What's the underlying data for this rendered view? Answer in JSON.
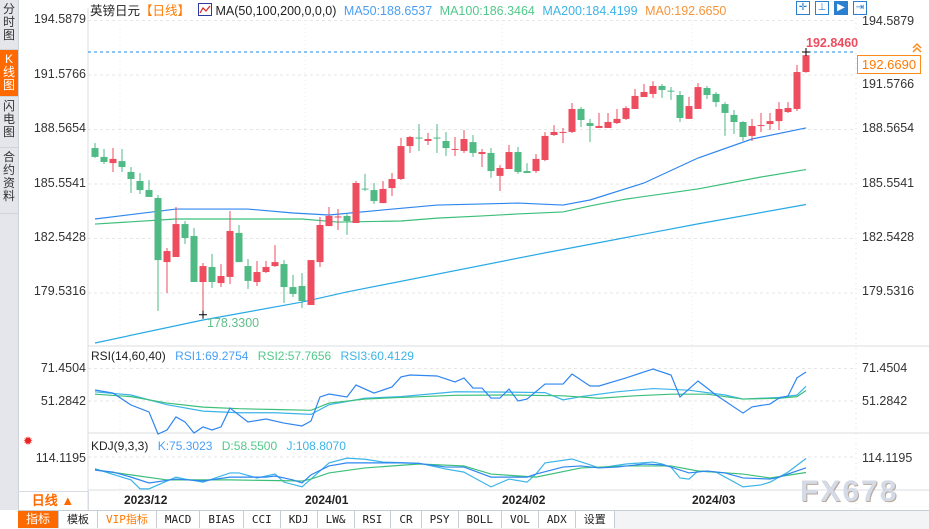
{
  "sidebar": {
    "tabs": [
      {
        "label": "分时图",
        "active": false
      },
      {
        "label": "K线图",
        "active": true
      },
      {
        "label": "闪电图",
        "active": false
      },
      {
        "label": "合约资料",
        "active": false
      }
    ]
  },
  "header": {
    "symbol": "英镑日元",
    "period_tag": "【日线】",
    "ma_params": "MA(50,100,200,0,0,0)",
    "ma50": "MA50:188.6537",
    "ma100": "MA100:186.3464",
    "ma200": "MA200:184.4199",
    "ma0": "MA0:192.6650"
  },
  "toolbar_icons": [
    "crosshair-icon",
    "zoom-range-icon",
    "play-chart-icon",
    "exit-right-icon"
  ],
  "price_axis": {
    "ticks": [
      "194.5879",
      "191.5766",
      "188.5654",
      "185.5541",
      "182.5428",
      "179.5316"
    ]
  },
  "annotations": {
    "high_label": "192.8460",
    "low_label": "178.3300",
    "last_price": "192.6690"
  },
  "colors": {
    "up": "#ee4d5f",
    "down": "#4fba84",
    "ma50": "#2f86f0",
    "ma100": "#3cbf7a",
    "ma200": "#27a9e6",
    "accent": "#ff6a00"
  },
  "candles": [
    [
      187.54,
      187.82,
      187.0,
      187.05
    ],
    [
      187.05,
      187.49,
      186.66,
      186.77
    ],
    [
      186.71,
      187.54,
      186.22,
      186.94
    ],
    [
      186.82,
      187.49,
      186.22,
      186.49
    ],
    [
      186.22,
      186.49,
      185.06,
      185.83
    ],
    [
      185.72,
      186.16,
      185.0,
      185.22
    ],
    [
      185.22,
      185.77,
      184.84,
      184.84
    ],
    [
      184.78,
      184.95,
      178.54,
      181.35
    ],
    [
      181.24,
      182.02,
      179.53,
      181.85
    ],
    [
      181.52,
      184.28,
      181.52,
      183.34
    ],
    [
      183.34,
      183.51,
      182.24,
      182.57
    ],
    [
      182.68,
      183.12,
      180.14,
      180.14
    ],
    [
      180.14,
      181.19,
      178.33,
      181.02
    ],
    [
      180.97,
      181.69,
      179.81,
      180.14
    ],
    [
      180.08,
      181.13,
      179.86,
      180.47
    ],
    [
      180.42,
      184.06,
      180.03,
      182.96
    ],
    [
      182.85,
      183.29,
      181.24,
      181.24
    ],
    [
      181.02,
      181.41,
      179.75,
      180.2
    ],
    [
      180.14,
      181.3,
      179.92,
      180.69
    ],
    [
      180.69,
      181.3,
      180.64,
      180.97
    ],
    [
      181.02,
      182.18,
      180.97,
      181.24
    ],
    [
      181.13,
      181.35,
      178.98,
      179.86
    ],
    [
      179.86,
      180.53,
      179.31,
      179.48
    ],
    [
      179.92,
      180.64,
      178.7,
      179.09
    ],
    [
      178.87,
      181.35,
      178.87,
      181.35
    ],
    [
      181.24,
      183.73,
      180.97,
      183.29
    ],
    [
      183.23,
      184.28,
      183.23,
      183.79
    ],
    [
      183.73,
      184.17,
      183.01,
      183.76
    ],
    [
      183.79,
      183.95,
      182.74,
      183.51
    ],
    [
      183.4,
      185.72,
      183.4,
      185.61
    ],
    [
      185.3,
      186.11,
      185.17,
      185.28
    ],
    [
      185.22,
      185.61,
      184.45,
      184.61
    ],
    [
      184.5,
      185.72,
      184.5,
      185.28
    ],
    [
      185.33,
      186.16,
      184.89,
      185.83
    ],
    [
      185.83,
      188.1,
      185.77,
      187.65
    ],
    [
      187.65,
      188.21,
      187.27,
      188.15
    ],
    [
      188.12,
      188.87,
      187.38,
      188.1
    ],
    [
      187.93,
      188.37,
      187.71,
      188.04
    ],
    [
      188.12,
      188.87,
      187.27,
      188.1
    ],
    [
      187.93,
      188.43,
      187.1,
      187.54
    ],
    [
      187.47,
      188.15,
      187.1,
      187.49
    ],
    [
      187.38,
      188.54,
      187.27,
      188.04
    ],
    [
      187.87,
      188.26,
      187.05,
      187.27
    ],
    [
      187.21,
      187.49,
      186.49,
      187.32
    ],
    [
      187.27,
      187.54,
      185.89,
      186.27
    ],
    [
      186.0,
      186.6,
      185.17,
      186.44
    ],
    [
      186.38,
      187.71,
      186.38,
      187.32
    ],
    [
      187.32,
      187.6,
      186.11,
      186.22
    ],
    [
      186.27,
      186.71,
      186.16,
      186.16
    ],
    [
      186.27,
      187.21,
      186.16,
      186.94
    ],
    [
      186.88,
      188.43,
      186.82,
      188.21
    ],
    [
      188.26,
      188.81,
      188.21,
      188.43
    ],
    [
      188.41,
      188.65,
      187.82,
      188.43
    ],
    [
      188.43,
      190.03,
      188.37,
      189.7
    ],
    [
      189.7,
      189.81,
      188.7,
      189.09
    ],
    [
      188.92,
      189.15,
      187.87,
      188.76
    ],
    [
      188.65,
      189.48,
      188.65,
      188.76
    ],
    [
      188.65,
      189.48,
      188.65,
      188.98
    ],
    [
      188.92,
      189.7,
      188.87,
      189.15
    ],
    [
      189.15,
      189.86,
      189.09,
      189.75
    ],
    [
      189.7,
      190.8,
      189.7,
      190.42
    ],
    [
      190.36,
      191.08,
      190.36,
      190.64
    ],
    [
      190.53,
      191.24,
      190.31,
      190.97
    ],
    [
      190.97,
      191.08,
      190.31,
      190.75
    ],
    [
      190.71,
      190.91,
      190.2,
      190.69
    ],
    [
      190.47,
      190.69,
      188.98,
      189.2
    ],
    [
      189.15,
      190.36,
      189.15,
      189.86
    ],
    [
      189.7,
      191.13,
      189.7,
      190.91
    ],
    [
      190.86,
      190.97,
      190.25,
      190.47
    ],
    [
      190.53,
      190.64,
      189.81,
      190.08
    ],
    [
      189.97,
      190.08,
      188.21,
      189.48
    ],
    [
      189.37,
      189.64,
      188.32,
      188.98
    ],
    [
      188.98,
      189.03,
      187.93,
      188.15
    ],
    [
      188.21,
      189.15,
      187.93,
      188.76
    ],
    [
      188.79,
      189.48,
      188.43,
      188.81
    ],
    [
      188.87,
      189.48,
      188.54,
      189.03
    ],
    [
      189.03,
      190.08,
      188.54,
      189.7
    ],
    [
      189.53,
      190.08,
      189.48,
      189.75
    ],
    [
      189.7,
      192.13,
      189.59,
      191.74
    ],
    [
      191.74,
      192.846,
      191.7,
      192.669
    ]
  ],
  "ma_lines": {
    "ma50": [
      [
        0,
        183.62
      ],
      [
        9,
        184.17
      ],
      [
        17,
        184.17
      ],
      [
        22,
        183.95
      ],
      [
        26,
        183.84
      ],
      [
        32,
        184.12
      ],
      [
        38,
        184.39
      ],
      [
        47,
        184.5
      ],
      [
        52,
        184.39
      ],
      [
        55,
        184.67
      ],
      [
        61,
        185.61
      ],
      [
        67,
        186.99
      ],
      [
        73,
        188.04
      ],
      [
        79,
        188.65
      ]
    ],
    "ma100": [
      [
        0,
        183.34
      ],
      [
        9,
        183.62
      ],
      [
        23,
        183.62
      ],
      [
        27,
        183.45
      ],
      [
        34,
        183.51
      ],
      [
        38,
        183.67
      ],
      [
        43,
        183.79
      ],
      [
        47,
        183.9
      ],
      [
        52,
        184.01
      ],
      [
        55,
        184.34
      ],
      [
        59,
        184.72
      ],
      [
        67,
        185.28
      ],
      [
        74,
        185.94
      ],
      [
        79,
        186.35
      ]
    ],
    "ma200": [
      [
        0,
        176.77
      ],
      [
        12,
        178.04
      ],
      [
        23,
        179.03
      ],
      [
        28,
        179.59
      ],
      [
        50,
        181.75
      ],
      [
        67,
        183.35
      ],
      [
        79,
        184.42
      ]
    ]
  },
  "rsi": {
    "title": "RSI(14,60,40)",
    "rsi1_label": "RSI1:69.2754",
    "rsi2_label": "RSI2:57.7656",
    "rsi3_label": "RSI3:60.4129",
    "ticks": [
      "71.4504",
      "51.2842"
    ],
    "rsi1": [
      [
        0,
        58.1
      ],
      [
        2,
        56.2
      ],
      [
        4,
        48.8
      ],
      [
        6,
        44.5
      ],
      [
        7,
        30.8
      ],
      [
        8,
        33.3
      ],
      [
        9,
        41.4
      ],
      [
        10,
        38.3
      ],
      [
        11,
        31.4
      ],
      [
        12,
        35.2
      ],
      [
        13,
        33.3
      ],
      [
        14,
        35.2
      ],
      [
        15,
        46.9
      ],
      [
        17,
        38.3
      ],
      [
        19,
        40.1
      ],
      [
        21,
        37.6
      ],
      [
        23,
        35.8
      ],
      [
        24,
        38.9
      ],
      [
        25,
        53.8
      ],
      [
        26,
        55.6
      ],
      [
        28,
        53.8
      ],
      [
        29,
        61.2
      ],
      [
        31,
        56.2
      ],
      [
        33,
        60.0
      ],
      [
        34,
        66.2
      ],
      [
        35,
        67.4
      ],
      [
        38,
        66.8
      ],
      [
        40,
        63.1
      ],
      [
        41,
        65.6
      ],
      [
        42,
        59.3
      ],
      [
        43,
        59.3
      ],
      [
        44,
        53.1
      ],
      [
        45,
        53.1
      ],
      [
        46,
        58.7
      ],
      [
        47,
        51.3
      ],
      [
        48,
        52.5
      ],
      [
        50,
        61.8
      ],
      [
        52,
        61.8
      ],
      [
        53,
        68.0
      ],
      [
        55,
        60.6
      ],
      [
        56,
        60.6
      ],
      [
        59,
        65.6
      ],
      [
        61,
        69.3
      ],
      [
        62,
        71.1
      ],
      [
        64,
        67.4
      ],
      [
        65,
        53.8
      ],
      [
        67,
        63.7
      ],
      [
        69,
        55.0
      ],
      [
        72,
        43.8
      ],
      [
        73,
        47.6
      ],
      [
        75,
        49.4
      ],
      [
        76,
        53.1
      ],
      [
        77,
        54.4
      ],
      [
        78,
        65.6
      ],
      [
        79,
        69.28
      ]
    ],
    "rsi2": [
      [
        0,
        55.5
      ],
      [
        4,
        54
      ],
      [
        8,
        50
      ],
      [
        12,
        47.5
      ],
      [
        16,
        46.5
      ],
      [
        20,
        46
      ],
      [
        24,
        45.5
      ],
      [
        26,
        50
      ],
      [
        30,
        52.5
      ],
      [
        34,
        53.5
      ],
      [
        40,
        54.8
      ],
      [
        46,
        55
      ],
      [
        52,
        54.5
      ],
      [
        56,
        53
      ],
      [
        60,
        54.5
      ],
      [
        64,
        55.5
      ],
      [
        68,
        55.5
      ],
      [
        72,
        52.5
      ],
      [
        76,
        53
      ],
      [
        78,
        54
      ],
      [
        79,
        57.77
      ]
    ],
    "rsi3": [
      [
        0,
        57
      ],
      [
        4,
        55
      ],
      [
        8,
        49
      ],
      [
        12,
        45
      ],
      [
        16,
        44
      ],
      [
        20,
        44
      ],
      [
        24,
        43
      ],
      [
        26,
        49
      ],
      [
        30,
        53
      ],
      [
        34,
        54
      ],
      [
        40,
        57
      ],
      [
        46,
        56.8
      ],
      [
        50,
        56.5
      ],
      [
        52,
        52
      ],
      [
        54,
        54
      ],
      [
        58,
        57
      ],
      [
        62,
        59
      ],
      [
        66,
        58
      ],
      [
        70,
        55
      ],
      [
        72,
        52.5
      ],
      [
        76,
        53.5
      ],
      [
        78,
        55
      ],
      [
        79,
        60.41
      ]
    ]
  },
  "kdj": {
    "title": "KDJ(9,3,3)",
    "k_label": "K:75.3023",
    "d_label": "D:58.5500",
    "j_label": "J:108.8070",
    "ticks": [
      "114.1195"
    ],
    "k": [
      [
        0,
        67
      ],
      [
        2,
        60
      ],
      [
        4,
        42
      ],
      [
        6,
        21
      ],
      [
        9,
        35
      ],
      [
        12,
        28
      ],
      [
        15,
        42
      ],
      [
        19,
        42
      ],
      [
        20,
        46
      ],
      [
        22,
        32
      ],
      [
        23,
        21
      ],
      [
        24,
        50
      ],
      [
        26,
        82
      ],
      [
        28,
        93
      ],
      [
        34,
        93
      ],
      [
        36,
        91
      ],
      [
        39,
        78
      ],
      [
        41,
        78
      ],
      [
        44,
        42
      ],
      [
        48,
        42
      ],
      [
        49,
        53
      ],
      [
        52,
        78
      ],
      [
        54,
        82
      ],
      [
        56,
        75
      ],
      [
        58,
        78
      ],
      [
        61,
        89
      ],
      [
        63,
        86
      ],
      [
        64,
        78
      ],
      [
        66,
        57
      ],
      [
        68,
        64
      ],
      [
        70,
        57
      ],
      [
        72,
        39
      ],
      [
        75,
        35
      ],
      [
        76,
        42
      ],
      [
        79,
        75.3
      ]
    ],
    "d": [
      [
        0,
        68
      ],
      [
        4,
        50
      ],
      [
        8,
        32
      ],
      [
        15,
        32
      ],
      [
        23,
        28
      ],
      [
        24,
        35
      ],
      [
        26,
        57
      ],
      [
        30,
        75
      ],
      [
        36,
        89
      ],
      [
        41,
        82
      ],
      [
        44,
        53
      ],
      [
        49,
        42
      ],
      [
        54,
        75
      ],
      [
        59,
        82
      ],
      [
        64,
        82
      ],
      [
        67,
        64
      ],
      [
        72,
        53
      ],
      [
        75,
        39
      ],
      [
        79,
        58.55
      ]
    ],
    "j": [
      [
        0,
        72
      ],
      [
        4,
        32
      ],
      [
        5,
        0
      ],
      [
        6,
        0
      ],
      [
        9,
        42
      ],
      [
        10,
        35
      ],
      [
        12,
        24
      ],
      [
        15,
        57
      ],
      [
        16,
        57
      ],
      [
        18,
        39
      ],
      [
        20,
        53
      ],
      [
        21,
        24
      ],
      [
        23,
        7
      ],
      [
        24,
        35
      ],
      [
        26,
        93
      ],
      [
        28,
        110
      ],
      [
        30,
        106
      ],
      [
        32,
        96
      ],
      [
        36,
        92
      ],
      [
        39,
        71
      ],
      [
        41,
        60
      ],
      [
        42,
        42
      ],
      [
        44,
        7
      ],
      [
        46,
        35
      ],
      [
        48,
        24
      ],
      [
        49,
        53
      ],
      [
        50,
        93
      ],
      [
        53,
        107
      ],
      [
        55,
        86
      ],
      [
        56,
        75
      ],
      [
        59,
        89
      ],
      [
        62,
        96
      ],
      [
        63,
        89
      ],
      [
        64,
        78
      ],
      [
        65,
        39
      ],
      [
        66,
        35
      ],
      [
        67,
        64
      ],
      [
        69,
        60
      ],
      [
        72,
        7
      ],
      [
        74,
        14
      ],
      [
        75,
        24
      ],
      [
        77,
        60
      ],
      [
        79,
        108.8
      ]
    ]
  },
  "date_axis": {
    "labels": [
      "2023/12",
      "2024/01",
      "2024/02",
      "2024/03"
    ]
  },
  "period_selector": {
    "label": "日线 ▲"
  },
  "bottom_tabs": [
    {
      "label": "指标",
      "active": true
    },
    {
      "label": "模板"
    },
    {
      "label": "VIP指标",
      "vip": true
    },
    {
      "label": "MACD"
    },
    {
      "label": "BIAS"
    },
    {
      "label": "CCI"
    },
    {
      "label": "KDJ"
    },
    {
      "label": "LW&"
    },
    {
      "label": "RSI"
    },
    {
      "label": "CR"
    },
    {
      "label": "PSY"
    },
    {
      "label": "BOLL"
    },
    {
      "label": "VOL"
    },
    {
      "label": "ADX"
    },
    {
      "label": "设置"
    }
  ],
  "watermark": "FX678"
}
